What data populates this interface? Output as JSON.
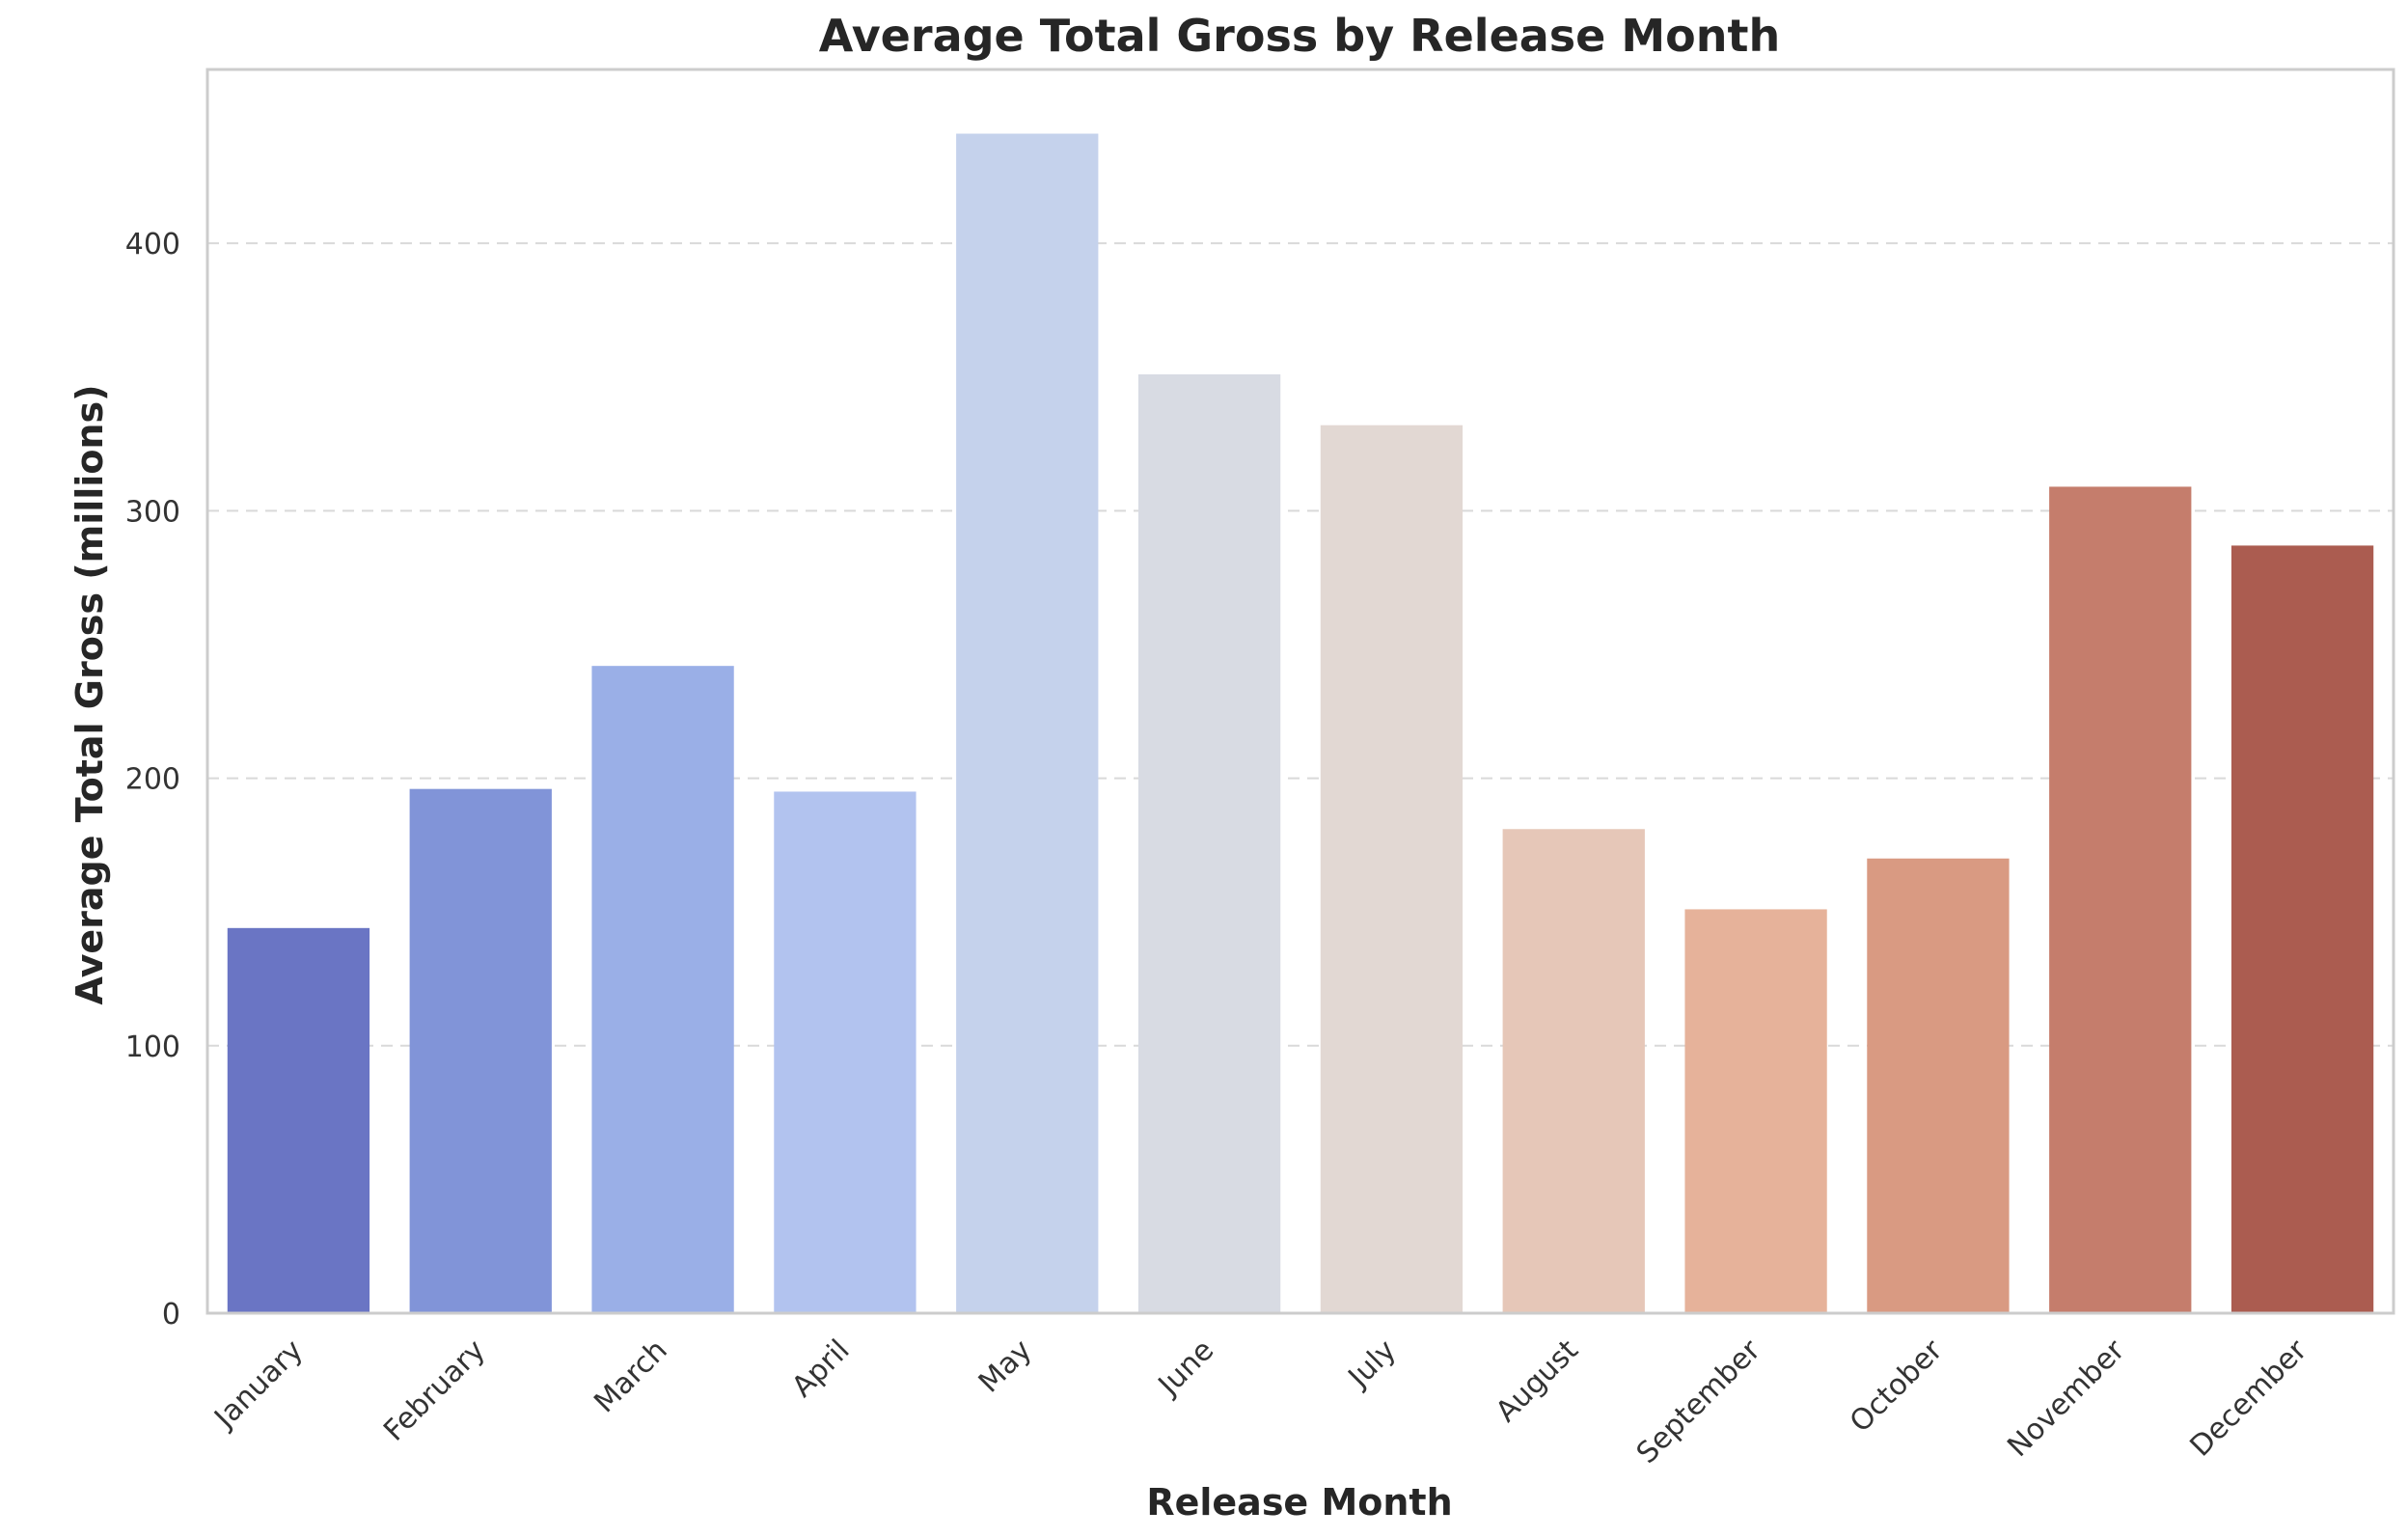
{
  "chart_data": {
    "type": "bar",
    "title": "Average Total Gross by Release Month",
    "xlabel": "Release Month",
    "ylabel": "Average Total Gross (millions)",
    "categories": [
      "January",
      "February",
      "March",
      "April",
      "May",
      "June",
      "July",
      "August",
      "September",
      "October",
      "November",
      "December"
    ],
    "values": [
      144,
      196,
      242,
      195,
      441,
      351,
      332,
      181,
      151,
      170,
      309,
      287
    ],
    "ylim": [
      0,
      465
    ],
    "yticks": [
      0,
      100,
      200,
      300,
      400
    ],
    "grid": true,
    "grid_axis": "y",
    "colors": [
      "#6a75c4",
      "#8194d8",
      "#9aafe7",
      "#b2c3ef",
      "#c5d2ec",
      "#d8dbe3",
      "#e2d8d3",
      "#e6c7b8",
      "#e6b29a",
      "#d99a82",
      "#c57d6c",
      "#ab5c50"
    ]
  }
}
